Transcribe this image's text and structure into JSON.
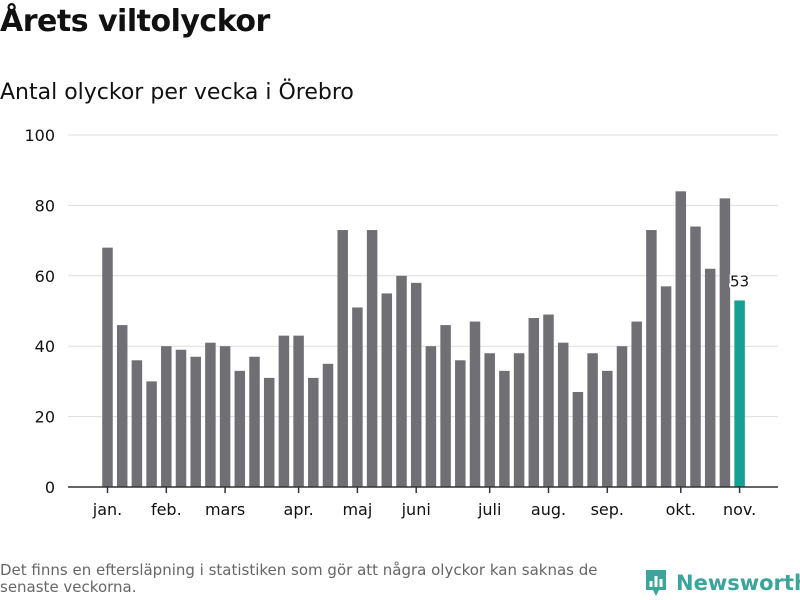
{
  "header": {
    "title": "Årets viltolyckor",
    "subtitle": "Antal olyckor per vecka i Örebro"
  },
  "footer": {
    "note": "Det finns en eftersläpning i statistiken som gör att några olyckor kan saknas de senaste veckorna.",
    "brand": "Newsworthy"
  },
  "colors": {
    "bar": "#706f74",
    "highlight": "#14a092",
    "grid": "#dddddd",
    "axis": "#333333",
    "text": "#111111",
    "brand": "#3aa59a"
  },
  "chart_data": {
    "type": "bar",
    "title": "Antal olyckor per vecka i Örebro",
    "ylim": [
      0,
      100
    ],
    "yticks": [
      0,
      20,
      40,
      60,
      80,
      100
    ],
    "weeks": [
      1,
      2,
      3,
      4,
      5,
      6,
      7,
      8,
      9,
      10,
      11,
      12,
      13,
      14,
      15,
      16,
      17,
      18,
      19,
      20,
      21,
      22,
      23,
      24,
      25,
      26,
      27,
      28,
      29,
      30,
      31,
      32,
      33,
      34,
      35,
      36,
      37,
      38,
      39,
      40,
      41,
      42,
      43,
      44
    ],
    "values": [
      68,
      46,
      36,
      30,
      40,
      39,
      37,
      41,
      40,
      33,
      37,
      31,
      43,
      43,
      31,
      35,
      73,
      51,
      73,
      55,
      60,
      58,
      40,
      46,
      36,
      47,
      38,
      33,
      38,
      48,
      49,
      41,
      27,
      38,
      33,
      40,
      47,
      73,
      57,
      84,
      74,
      62,
      82,
      53
    ],
    "highlight_week": 44,
    "highlight_label": "53",
    "month_labels": [
      {
        "label": "jan.",
        "week": 1
      },
      {
        "label": "feb.",
        "week": 5
      },
      {
        "label": "mars",
        "week": 9
      },
      {
        "label": "apr.",
        "week": 14
      },
      {
        "label": "maj",
        "week": 18
      },
      {
        "label": "juni",
        "week": 22
      },
      {
        "label": "juli",
        "week": 27
      },
      {
        "label": "aug.",
        "week": 31
      },
      {
        "label": "sep.",
        "week": 35
      },
      {
        "label": "okt.",
        "week": 40
      },
      {
        "label": "nov.",
        "week": 44
      }
    ]
  }
}
